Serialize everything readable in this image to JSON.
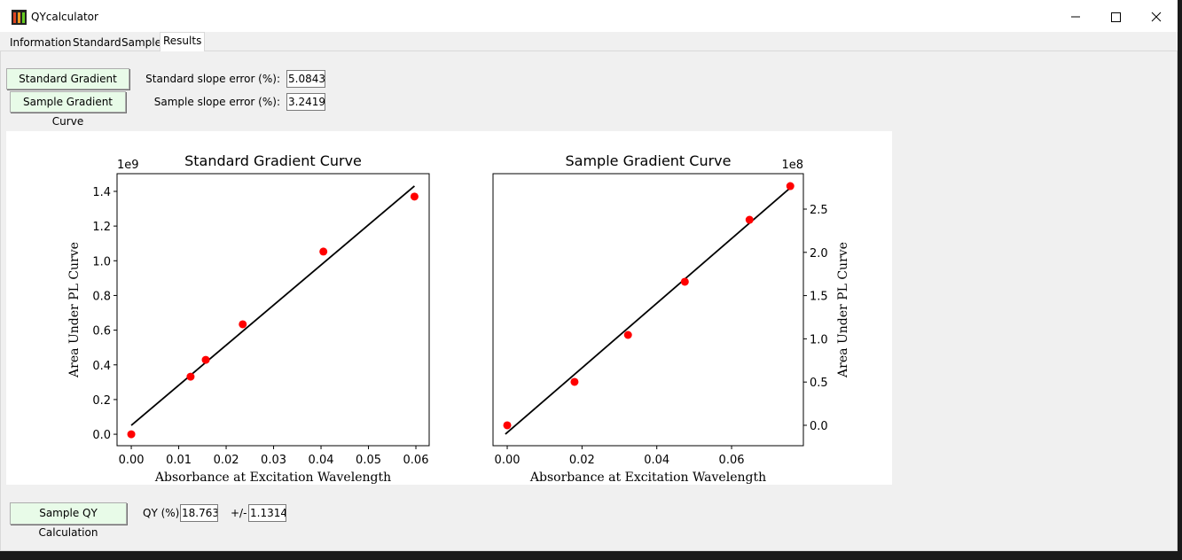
{
  "window": {
    "title": "QYcalculator"
  },
  "tabs": [
    "Information",
    "Standard",
    "Sample",
    "Results"
  ],
  "controls": {
    "standard_button": "Standard Gradient Curve",
    "sample_button": "Sample Gradient Curve",
    "standard_error_label": "Standard slope error (%):",
    "standard_error_value": "5.08431",
    "sample_error_label": "Sample slope error (%):",
    "sample_error_value": "3.24190",
    "qy_button": "Sample QY Calculation",
    "qy_label": "QY (%):",
    "qy_value": "18.7630",
    "pm_label": "+/-",
    "pm_value": "1.13140"
  },
  "chart_data": [
    {
      "type": "scatter",
      "title": "Standard Gradient Curve",
      "x_label": "Absorbance at Excitation Wavelength",
      "y_label": "Area Under PL Curve",
      "y_offset_text": "1e9",
      "y_axis_side": "left",
      "xlim": [
        -0.003,
        0.0628
      ],
      "ylim": [
        -0.066,
        1.502
      ],
      "xticks": [
        {
          "value": 0,
          "label": "0.00"
        },
        {
          "value": 0.01,
          "label": "0.01"
        },
        {
          "value": 0.02,
          "label": "0.02"
        },
        {
          "value": 0.03,
          "label": "0.03"
        },
        {
          "value": 0.04,
          "label": "0.04"
        },
        {
          "value": 0.05,
          "label": "0.05"
        },
        {
          "value": 0.06,
          "label": "0.06"
        }
      ],
      "yticks": [
        {
          "value": 0,
          "label": "0.0"
        },
        {
          "value": 0.2,
          "label": "0.2"
        },
        {
          "value": 0.4,
          "label": "0.4"
        },
        {
          "value": 0.6,
          "label": "0.6"
        },
        {
          "value": 0.8,
          "label": "0.8"
        },
        {
          "value": 1.0,
          "label": "1.0"
        },
        {
          "value": 1.2,
          "label": "1.2"
        },
        {
          "value": 1.4,
          "label": "1.4"
        }
      ],
      "points": {
        "color": "#ff0000",
        "x": [
          0.0,
          0.0125,
          0.0157,
          0.0235,
          0.0405,
          0.0597
        ],
        "y": [
          0.0,
          0.332,
          0.429,
          0.634,
          1.053,
          1.37
        ]
      },
      "fit": {
        "color": "#000000",
        "x": [
          0.0,
          0.0597
        ],
        "y": [
          0.051,
          1.431
        ]
      }
    },
    {
      "type": "scatter",
      "title": "Sample Gradient Curve",
      "x_label": "Absorbance at Excitation Wavelength",
      "y_label": "Area Under PL Curve",
      "y_offset_text": "1e8",
      "y_axis_side": "right",
      "xlim": [
        -0.0038,
        0.0792
      ],
      "ylim": [
        -0.236,
        2.91
      ],
      "xticks": [
        {
          "value": 0,
          "label": "0.00"
        },
        {
          "value": 0.02,
          "label": "0.02"
        },
        {
          "value": 0.04,
          "label": "0.04"
        },
        {
          "value": 0.06,
          "label": "0.06"
        }
      ],
      "yticks": [
        {
          "value": 0,
          "label": "0.0"
        },
        {
          "value": 0.5,
          "label": "0.5"
        },
        {
          "value": 1.0,
          "label": "1.0"
        },
        {
          "value": 1.5,
          "label": "1.5"
        },
        {
          "value": 2.0,
          "label": "2.0"
        },
        {
          "value": 2.5,
          "label": "2.5"
        }
      ],
      "points": {
        "color": "#ff0000",
        "x": [
          0.0,
          0.018,
          0.0323,
          0.0475,
          0.0648,
          0.0757
        ],
        "y": [
          0.0,
          0.502,
          1.045,
          1.66,
          2.377,
          2.766
        ]
      },
      "fit": {
        "color": "#000000",
        "x": [
          -0.0005,
          0.0757
        ],
        "y": [
          -0.102,
          2.746
        ]
      }
    }
  ]
}
